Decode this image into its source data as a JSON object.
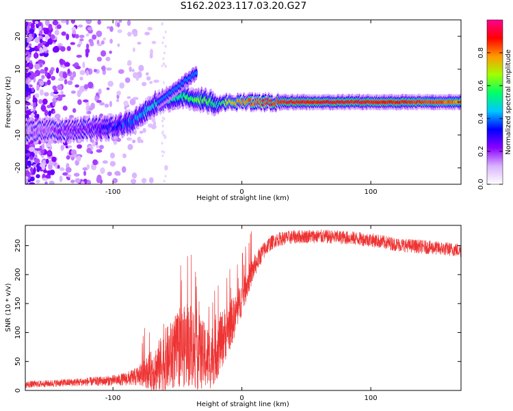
{
  "title": "S162.2023.117.03.20.G27",
  "chart_data": [
    {
      "type": "heatmap",
      "xlabel": "Height of straight line (km)",
      "ylabel": "Frequency (Hz)",
      "xlim": [
        -168,
        170
      ],
      "ylim": [
        -25,
        25
      ],
      "x_ticks": [
        -100,
        0,
        100
      ],
      "y_ticks": [
        -20,
        -10,
        0,
        10,
        20
      ],
      "colorbar": {
        "label": "Normalized spectral amplitude",
        "range": [
          0,
          1
        ],
        "ticks": [
          "0.0",
          "0.2",
          "0.4",
          "0.6",
          "0.8"
        ],
        "colors": [
          "#ffffff",
          "#d9b3ff",
          "#8a00ff",
          "#0000ff",
          "#00c8ff",
          "#00ff66",
          "#a0ff00",
          "#ff9900",
          "#ff0000",
          "#ff0090"
        ]
      },
      "ridge_track": {
        "description_points_x": [
          -168,
          -115,
          -105,
          -95,
          -85,
          -75,
          -65,
          -55,
          -45,
          -35,
          -25,
          -18,
          -10,
          0,
          20,
          40,
          60,
          80,
          100,
          120,
          150,
          170
        ],
        "frequency_hz": [
          -9,
          -8,
          -8,
          -7,
          -6,
          -3,
          0,
          1,
          2,
          1,
          0,
          -1,
          0,
          0,
          0,
          0,
          0,
          0,
          0,
          0,
          0,
          0
        ],
        "peak_amplitude": [
          0.15,
          0.25,
          0.3,
          0.35,
          0.4,
          0.45,
          0.5,
          0.5,
          0.55,
          0.6,
          0.6,
          0.5,
          0.7,
          0.8,
          0.85,
          0.9,
          0.9,
          0.9,
          0.9,
          0.9,
          0.85,
          0.8
        ]
      },
      "branch_track": {
        "x": [
          -65,
          -55,
          -45,
          -35
        ],
        "frequency_hz": [
          0,
          3,
          6,
          9
        ]
      }
    },
    {
      "type": "line",
      "xlabel": "Height of straight line (km)",
      "ylabel": "SNR (10 * v/v)",
      "xlim": [
        -168,
        170
      ],
      "ylim": [
        0,
        285
      ],
      "x_ticks": [
        -100,
        0,
        100
      ],
      "y_ticks": [
        0,
        50,
        100,
        150,
        200,
        250
      ],
      "color": "#ee3333",
      "series": [
        {
          "x": [
            -168,
            -150,
            -130,
            -110,
            -95,
            -85,
            -80,
            -75,
            -70,
            -65,
            -60,
            -55,
            -50,
            -45,
            -40,
            -35,
            -30,
            -25,
            -20,
            -15,
            -10,
            -5,
            0,
            5,
            10,
            15,
            20,
            25,
            30,
            40,
            50,
            60,
            70,
            80,
            90,
            100,
            110,
            120,
            130,
            140,
            150,
            160,
            170
          ],
          "values": [
            10,
            12,
            14,
            16,
            18,
            22,
            25,
            30,
            35,
            40,
            50,
            60,
            70,
            75,
            80,
            70,
            60,
            55,
            70,
            90,
            110,
            130,
            160,
            190,
            215,
            235,
            250,
            258,
            262,
            265,
            266,
            266,
            265,
            264,
            262,
            260,
            256,
            252,
            250,
            248,
            246,
            244,
            242
          ],
          "noise": [
            6,
            6,
            7,
            8,
            10,
            14,
            18,
            25,
            35,
            45,
            55,
            60,
            65,
            70,
            75,
            70,
            60,
            55,
            55,
            50,
            45,
            35,
            30,
            25,
            20,
            16,
            14,
            12,
            12,
            12,
            12,
            12,
            12,
            12,
            12,
            12,
            12,
            12,
            12,
            12,
            12,
            12,
            12
          ]
        }
      ]
    }
  ]
}
